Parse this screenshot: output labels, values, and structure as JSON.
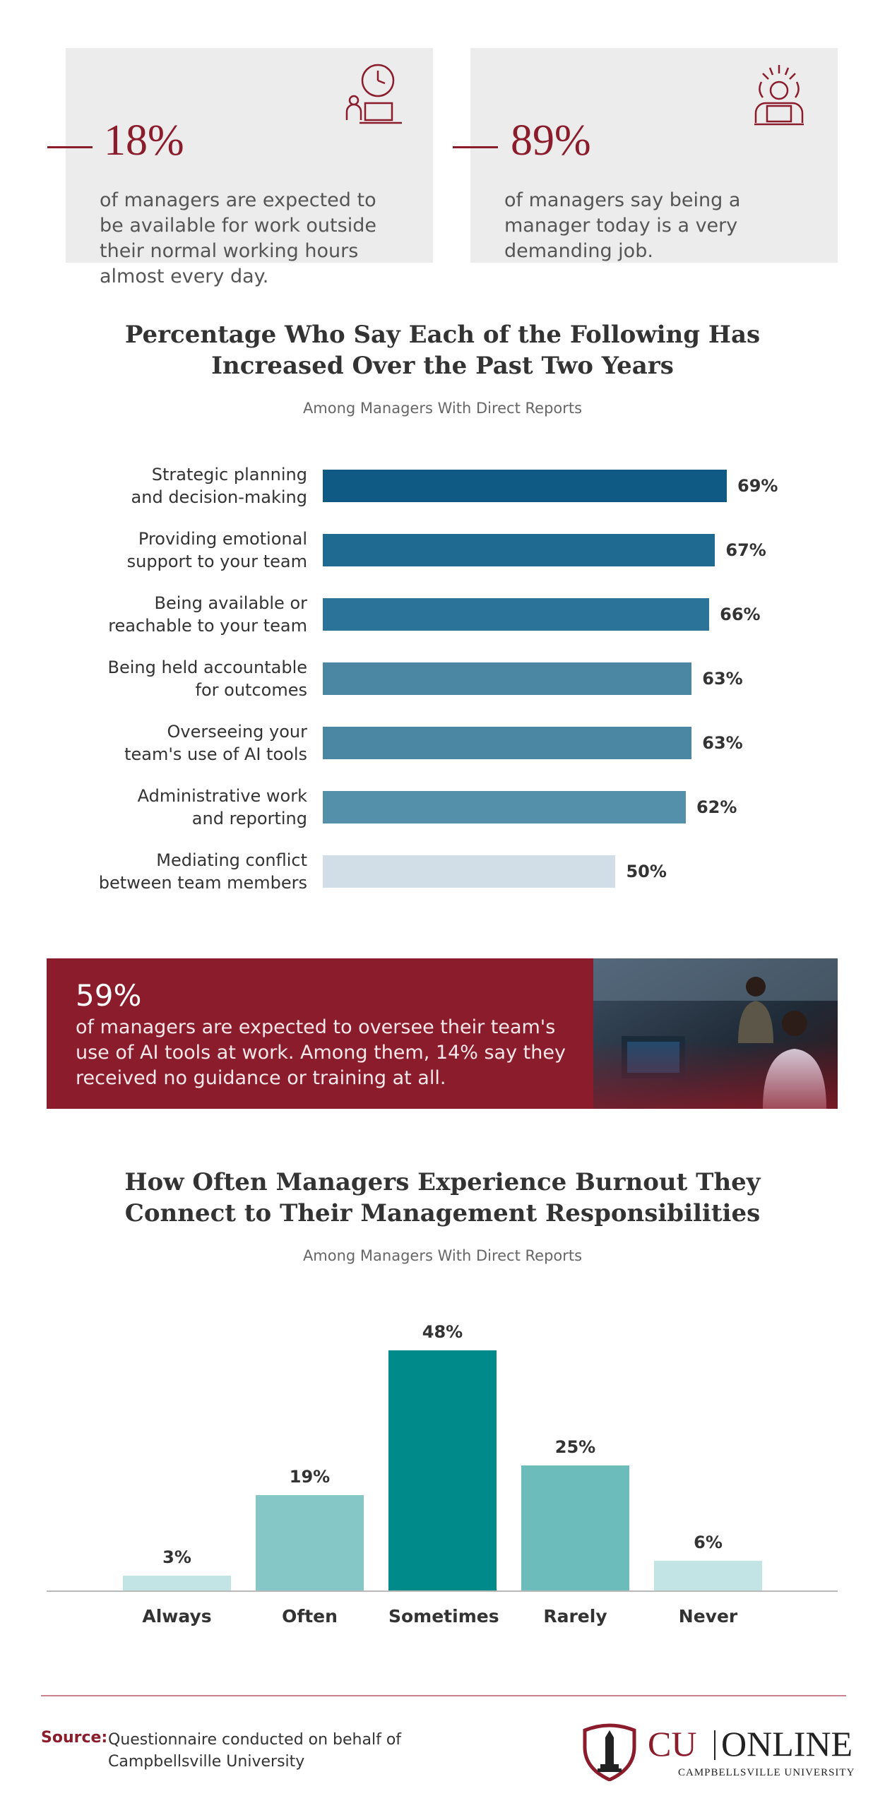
{
  "stats": [
    {
      "value": "18%",
      "text": "of managers are expected to be available for work outside their normal working hours almost every day.",
      "icon": "clock-laptop-icon"
    },
    {
      "value": "89%",
      "text": "of managers say being a manager today is a very demanding job.",
      "icon": "stressed-manager-icon"
    }
  ],
  "colors": {
    "brand": "#8b1c2b",
    "card_bg": "#ececec",
    "hbar_dark": "#0f5a84",
    "hbar_mid": "#4b86a3",
    "hbar_light": "#d1dee7",
    "vbar_dark": "#008b8b",
    "vbar_mid": "#6cbcbc",
    "vbar_light": "#c2e4e4"
  },
  "chart_data": [
    {
      "type": "bar",
      "orientation": "horizontal",
      "title": "Percentage Who Say Each of the Following Has\nIncreased Over the Past Two Years",
      "subtitle": "Among Managers With Direct Reports",
      "categories": [
        "Strategic planning\nand decision-making",
        "Providing emotional\nsupport to your team",
        "Being available or\nreachable to your team",
        "Being held accountable\nfor outcomes",
        "Overseeing your\nteam's use of AI tools",
        "Administrative work\nand reporting",
        "Mediating conflict\nbetween team members"
      ],
      "values": [
        69,
        67,
        66,
        63,
        63,
        62,
        50
      ],
      "value_labels": [
        "69%",
        "67%",
        "66%",
        "63%",
        "63%",
        "62%",
        "50%"
      ],
      "bar_colors": [
        "#0f5a84",
        "#1f6a91",
        "#2b7399",
        "#4b86a3",
        "#4b86a3",
        "#5590ab",
        "#d1dee7"
      ],
      "xlim": [
        0,
        100
      ]
    },
    {
      "type": "bar",
      "orientation": "vertical",
      "title": "How Often Managers Experience Burnout They\nConnect to Their Management Responsibilities",
      "subtitle": "Among Managers With Direct Reports",
      "categories": [
        "Always",
        "Often",
        "Sometimes",
        "Rarely",
        "Never"
      ],
      "values": [
        3,
        19,
        48,
        25,
        6
      ],
      "value_labels": [
        "3%",
        "19%",
        "48%",
        "25%",
        "6%"
      ],
      "bar_colors": [
        "#c2e4e4",
        "#85c6c6",
        "#008b8b",
        "#6cbcbc",
        "#c2e4e4"
      ],
      "ylim": [
        0,
        48
      ]
    }
  ],
  "banner": {
    "value": "59%",
    "text": "of managers are expected to oversee their team's use of AI tools at work. Among them, 14% say they received no guidance or training at all."
  },
  "footer": {
    "source_label": "Source:",
    "source_text": "Questionnaire conducted on behalf of Campbellsville University",
    "logo_cu": "CU",
    "logo_online": "ONLINE",
    "logo_sub": "CAMPBELLSVILLE UNIVERSITY"
  }
}
